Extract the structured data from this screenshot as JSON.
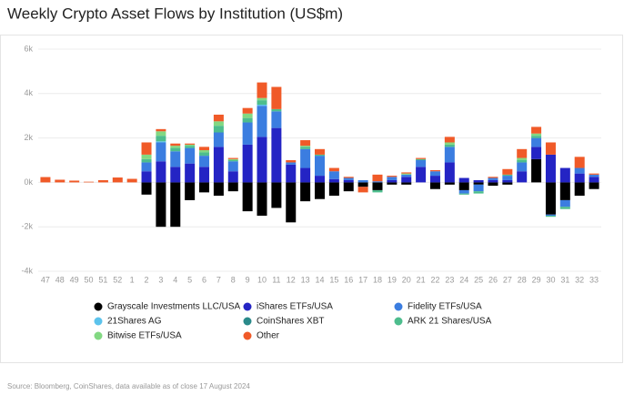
{
  "chart_data": {
    "type": "bar",
    "stacked": true,
    "title": "Weekly Crypto Asset Flows by Institution (US$m)",
    "source": "Source: Bloomberg, CoinShares, data available as of close 17 August 2024",
    "categories": [
      "47",
      "48",
      "49",
      "50",
      "51",
      "52",
      "1",
      "2",
      "3",
      "4",
      "5",
      "6",
      "7",
      "8",
      "9",
      "10",
      "11",
      "12",
      "13",
      "14",
      "15",
      "16",
      "17",
      "18",
      "19",
      "20",
      "21",
      "22",
      "23",
      "24",
      "25",
      "26",
      "27",
      "28",
      "29",
      "30",
      "31",
      "32",
      "33"
    ],
    "ylim": [
      -4000,
      6000
    ],
    "yticks": [
      {
        "value": -4000,
        "label": "-4k"
      },
      {
        "value": -2000,
        "label": "-2k"
      },
      {
        "value": 0,
        "label": "0k"
      },
      {
        "value": 2000,
        "label": "2k"
      },
      {
        "value": 4000,
        "label": "4k"
      },
      {
        "value": 6000,
        "label": "6k"
      }
    ],
    "grid": true,
    "series": [
      {
        "name": "Grayscale Investments LLC/USA",
        "color": "#000000",
        "values": [
          0,
          0,
          0,
          0,
          0,
          0,
          0,
          -550,
          -2000,
          -2000,
          -800,
          -450,
          -600,
          -400,
          -1300,
          -1500,
          -1150,
          -1800,
          -850,
          -750,
          -600,
          -400,
          -200,
          -350,
          -100,
          -100,
          0,
          -300,
          -100,
          -350,
          -100,
          -150,
          -100,
          0,
          1050,
          -1450,
          -800,
          -600,
          -300
        ]
      },
      {
        "name": "iShares ETFs/USA",
        "color": "#2424c4",
        "values": [
          0,
          0,
          0,
          0,
          0,
          0,
          0,
          500,
          950,
          700,
          850,
          700,
          1600,
          500,
          1700,
          2050,
          2450,
          800,
          650,
          300,
          150,
          100,
          0,
          0,
          100,
          250,
          700,
          300,
          900,
          200,
          100,
          100,
          100,
          500,
          550,
          1250,
          650,
          400,
          250
        ]
      },
      {
        "name": "Fidelity ETFs/USA",
        "color": "#3b7de0",
        "values": [
          0,
          0,
          0,
          0,
          0,
          0,
          0,
          400,
          850,
          700,
          700,
          500,
          650,
          450,
          1000,
          1400,
          750,
          100,
          850,
          900,
          350,
          100,
          100,
          50,
          150,
          100,
          300,
          200,
          700,
          -150,
          -300,
          100,
          200,
          400,
          400,
          -50,
          -300,
          250,
          100
        ]
      },
      {
        "name": "21Shares AG",
        "color": "#5cc3ec",
        "values": [
          0,
          0,
          0,
          0,
          0,
          0,
          0,
          0,
          50,
          0,
          0,
          0,
          0,
          0,
          0,
          50,
          0,
          0,
          0,
          0,
          0,
          0,
          0,
          0,
          0,
          0,
          0,
          0,
          0,
          0,
          0,
          0,
          0,
          0,
          0,
          0,
          0,
          0,
          0
        ]
      },
      {
        "name": "CoinShares XBT",
        "color": "#2a8a8a",
        "values": [
          0,
          0,
          0,
          0,
          0,
          0,
          0,
          0,
          0,
          0,
          0,
          0,
          0,
          0,
          0,
          0,
          0,
          0,
          0,
          0,
          0,
          0,
          0,
          0,
          0,
          0,
          0,
          0,
          0,
          0,
          0,
          0,
          0,
          0,
          0,
          0,
          0,
          0,
          0
        ]
      },
      {
        "name": "ARK 21 Shares/USA",
        "color": "#4dbd8d",
        "values": [
          0,
          0,
          0,
          0,
          0,
          0,
          0,
          150,
          250,
          150,
          100,
          150,
          300,
          50,
          200,
          200,
          100,
          0,
          100,
          50,
          0,
          0,
          0,
          -100,
          0,
          0,
          50,
          0,
          100,
          -50,
          -100,
          0,
          50,
          100,
          100,
          -50,
          -100,
          0,
          0
        ]
      },
      {
        "name": "Bitwise ETFs/USA",
        "color": "#82d882",
        "values": [
          0,
          0,
          0,
          0,
          0,
          0,
          0,
          200,
          200,
          100,
          50,
          100,
          200,
          50,
          200,
          100,
          0,
          0,
          50,
          0,
          0,
          0,
          0,
          0,
          0,
          50,
          0,
          0,
          100,
          0,
          0,
          0,
          0,
          100,
          100,
          0,
          0,
          0,
          0
        ]
      },
      {
        "name": "Other",
        "color": "#f05a28",
        "values": [
          240,
          120,
          80,
          30,
          100,
          220,
          160,
          550,
          100,
          100,
          50,
          150,
          300,
          50,
          250,
          700,
          1000,
          100,
          250,
          250,
          150,
          50,
          -250,
          300,
          50,
          50,
          50,
          50,
          250,
          0,
          0,
          50,
          250,
          400,
          300,
          550,
          0,
          500,
          50
        ]
      }
    ]
  }
}
